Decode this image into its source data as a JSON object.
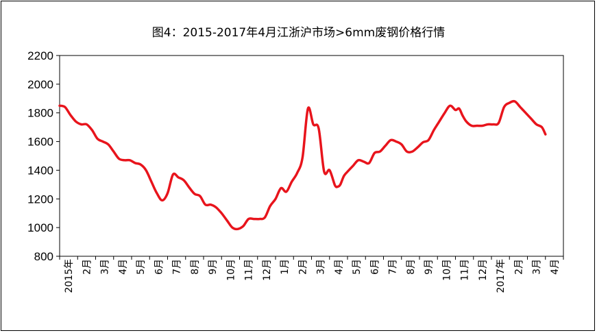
{
  "chart_data": {
    "type": "line",
    "title": "图4：2015-2017年4月江浙沪市场>6mm废钢价格行情",
    "xlabel": "",
    "ylabel": "",
    "ylim": [
      800,
      2200
    ],
    "yticks": [
      800,
      1000,
      1200,
      1400,
      1600,
      1800,
      2000,
      2200
    ],
    "x_tick_labels": [
      "2015年",
      "2月",
      "3月",
      "4月",
      "5月",
      "6月",
      "7月",
      "8月",
      "9月",
      "10月",
      "11月",
      "12月",
      "1月",
      "2月",
      "3月",
      "4月",
      "5月",
      "6月",
      "7月",
      "8月",
      "9月",
      "10月",
      "11月",
      "12月",
      "2017年",
      "2月",
      "3月",
      "4月"
    ],
    "grid": false,
    "legend": "none",
    "series": [
      {
        "color": "#e8141c",
        "x": [
          0,
          0.3,
          0.6,
          0.9,
          1.2,
          1.5,
          1.8,
          2.1,
          2.4,
          2.7,
          3.0,
          3.3,
          3.6,
          3.9,
          4.2,
          4.5,
          4.8,
          5.1,
          5.4,
          5.7,
          6.0,
          6.3,
          6.6,
          6.9,
          7.2,
          7.5,
          7.8,
          8.1,
          8.4,
          8.7,
          9.0,
          9.3,
          9.6,
          9.9,
          10.2,
          10.5,
          10.8,
          11.1,
          11.4,
          11.7,
          12.0,
          12.3,
          12.6,
          12.9,
          13.2,
          13.5,
          13.8,
          14.1,
          14.4,
          14.7,
          15.0,
          15.3,
          15.45,
          15.6,
          15.8,
          16.0,
          16.3,
          16.6,
          16.9,
          17.2,
          17.5,
          17.8,
          18.1,
          18.4,
          18.7,
          19.0,
          19.3,
          19.6,
          19.9,
          20.2,
          20.5,
          20.8,
          21.1,
          21.4,
          21.7,
          22.0,
          22.2,
          22.4,
          22.6,
          22.9,
          23.2,
          23.5,
          23.8,
          24.1,
          24.4,
          24.7,
          25.0,
          25.3,
          25.6,
          25.9,
          26.2,
          26.5,
          26.8,
          27.0
        ],
        "y": [
          1850,
          1840,
          1785,
          1740,
          1720,
          1720,
          1680,
          1620,
          1600,
          1580,
          1530,
          1480,
          1470,
          1470,
          1450,
          1440,
          1400,
          1320,
          1240,
          1190,
          1240,
          1370,
          1350,
          1330,
          1280,
          1235,
          1220,
          1160,
          1160,
          1140,
          1100,
          1050,
          1000,
          990,
          1010,
          1060,
          1060,
          1060,
          1070,
          1150,
          1200,
          1275,
          1250,
          1320,
          1380,
          1490,
          1830,
          1720,
          1690,
          1390,
          1400,
          1295,
          1285,
          1300,
          1360,
          1390,
          1430,
          1470,
          1460,
          1450,
          1520,
          1530,
          1570,
          1610,
          1600,
          1580,
          1530,
          1530,
          1560,
          1595,
          1610,
          1680,
          1740,
          1800,
          1850,
          1820,
          1830,
          1780,
          1740,
          1710,
          1710,
          1710,
          1720,
          1720,
          1730,
          1840,
          1870,
          1880,
          1840,
          1800,
          1760,
          1720,
          1700,
          1650
        ]
      }
    ]
  }
}
